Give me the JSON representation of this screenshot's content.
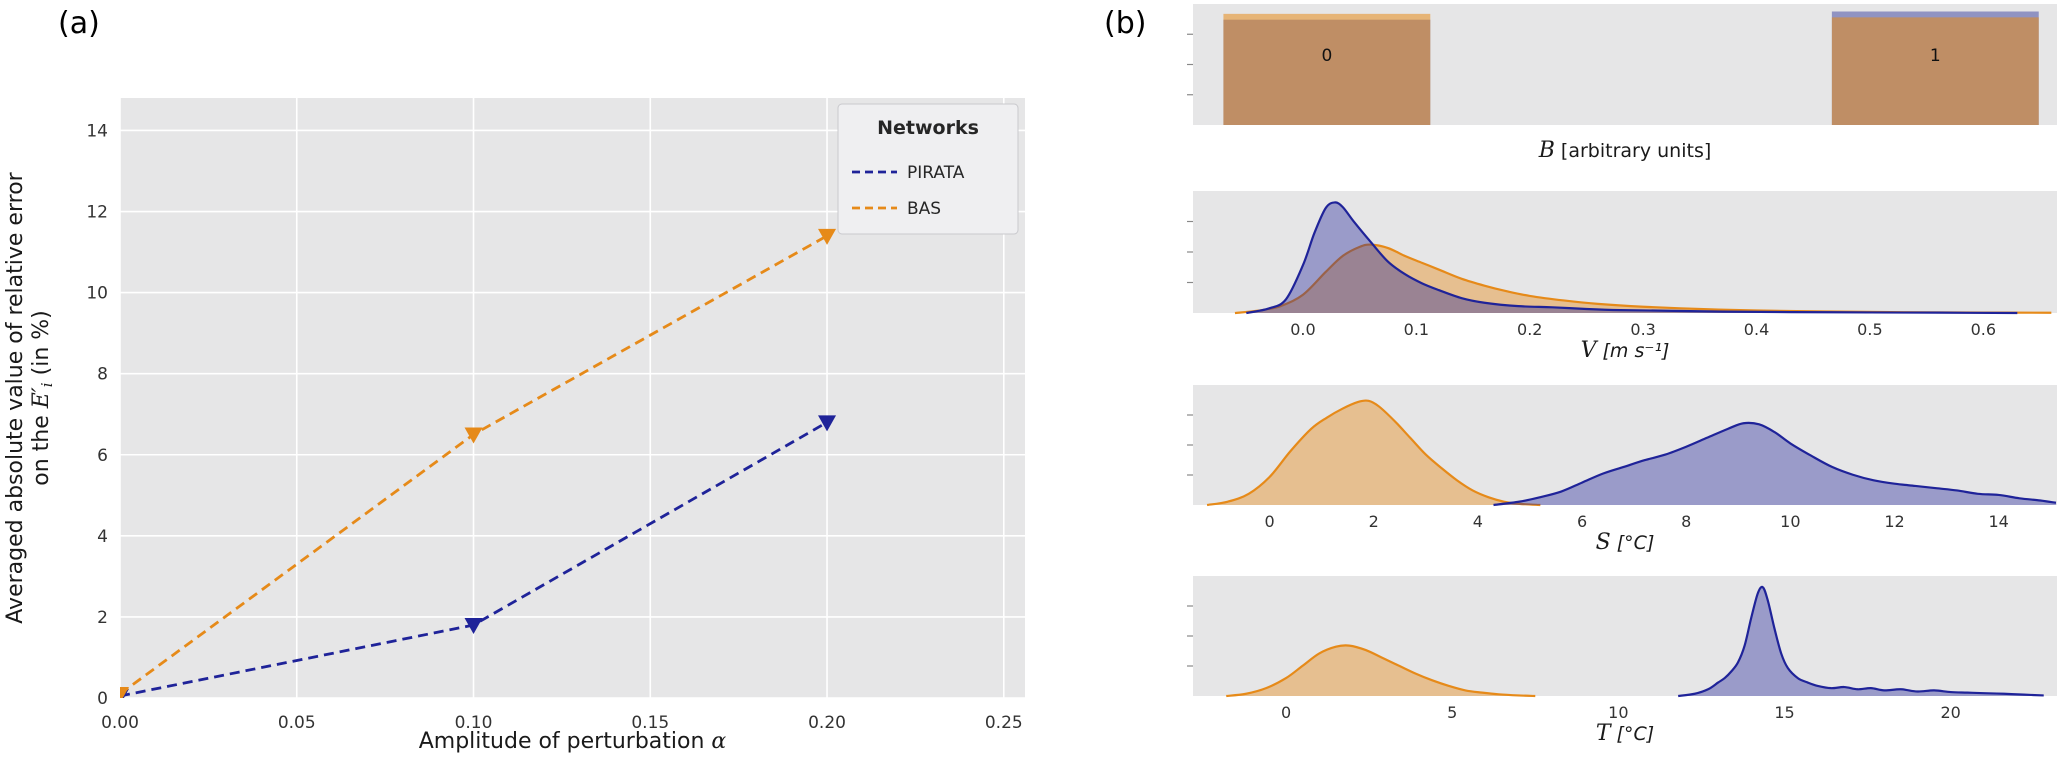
{
  "figure": {
    "panel_a_label": "(a)",
    "panel_b_label": "(b)"
  },
  "colors": {
    "pirata_navy": "#1f2399",
    "bas_orange": "#e68a19",
    "plot_background": "#e6e6e7",
    "grid_white": "#ffffff",
    "tick_text": "#333333",
    "label_text": "#1a1a1a",
    "legend_background": "#efeff1",
    "legend_border": "#c9c9cd"
  },
  "chart_data": [
    {
      "id": "error_vs_amplitude",
      "type": "line",
      "xlabel_text": "Amplitude of perturbation ",
      "xlabel_symbol": "α",
      "ylabel_line1": "Averaged absolute value of relative error",
      "ylabel_line2_pre": "on the ",
      "ylabel_line2_var": "E′",
      "ylabel_line2_sub": "i",
      "ylabel_line2_post": " (in %)",
      "xlim": [
        0.0,
        0.256
      ],
      "ylim": [
        0.0,
        14.8
      ],
      "xticks": [
        0.0,
        0.05,
        0.1,
        0.15,
        0.2,
        0.25
      ],
      "xtick_labels": [
        "0.00",
        "0.05",
        "0.10",
        "0.15",
        "0.20",
        "0.25"
      ],
      "yticks": [
        0,
        2,
        4,
        6,
        8,
        10,
        12,
        14
      ],
      "ytick_labels": [
        "0",
        "2",
        "4",
        "6",
        "8",
        "10",
        "12",
        "14"
      ],
      "grid": true,
      "legend": {
        "title": "Networks",
        "entries": [
          {
            "label": "PIRATA",
            "color": "#1f2399"
          },
          {
            "label": "BAS",
            "color": "#e68a19"
          }
        ]
      },
      "series": [
        {
          "name": "PIRATA",
          "color": "#1f2399",
          "linestyle": "dashed",
          "marker": "triangle-down",
          "x": [
            0.0,
            0.1,
            0.2
          ],
          "y": [
            0.05,
            1.8,
            6.8
          ]
        },
        {
          "name": "BAS",
          "color": "#e68a19",
          "linestyle": "dashed",
          "marker": "triangle-down",
          "x": [
            0.0,
            0.1,
            0.2
          ],
          "y": [
            0.1,
            6.5,
            11.4
          ]
        }
      ]
    },
    {
      "id": "hist_B",
      "type": "bar",
      "symbol": "B",
      "xlabel_rest": " [arbitrary units]",
      "xlim": [
        -0.22,
        1.2
      ],
      "bar_width": 0.34,
      "bars": [
        {
          "x": 0,
          "label": "0",
          "bas_orange_height": 0.95,
          "pirata_blue_height": 0.9
        },
        {
          "x": 1,
          "label": "1",
          "bas_orange_height": 0.92,
          "pirata_blue_height": 0.97
        }
      ]
    },
    {
      "id": "kde_V",
      "type": "area",
      "symbol": "V",
      "xlabel_rest": " [m s⁻¹]",
      "xlim": [
        -0.097,
        0.665
      ],
      "xticks": [
        0,
        0.1,
        0.2,
        0.3,
        0.4,
        0.5,
        0.6
      ],
      "xtick_labels": [
        "0.0",
        "0.1",
        "0.2",
        "0.3",
        "0.4",
        "0.5",
        "0.6"
      ],
      "series": [
        {
          "name": "BAS",
          "color": "#e68a19",
          "fill_opacity": 0.42,
          "points": [
            [
              -0.06,
              0
            ],
            [
              -0.04,
              0.02
            ],
            [
              -0.02,
              0.06
            ],
            [
              0,
              0.16
            ],
            [
              0.02,
              0.36
            ],
            [
              0.035,
              0.5
            ],
            [
              0.05,
              0.58
            ],
            [
              0.06,
              0.6
            ],
            [
              0.075,
              0.57
            ],
            [
              0.09,
              0.5
            ],
            [
              0.105,
              0.44
            ],
            [
              0.12,
              0.38
            ],
            [
              0.14,
              0.3
            ],
            [
              0.16,
              0.24
            ],
            [
              0.18,
              0.19
            ],
            [
              0.2,
              0.15
            ],
            [
              0.23,
              0.11
            ],
            [
              0.26,
              0.08
            ],
            [
              0.3,
              0.055
            ],
            [
              0.35,
              0.035
            ],
            [
              0.4,
              0.022
            ],
            [
              0.46,
              0.013
            ],
            [
              0.53,
              0.007
            ],
            [
              0.6,
              0.004
            ],
            [
              0.66,
              0.002
            ]
          ]
        },
        {
          "name": "PIRATA",
          "color": "#1f2399",
          "fill_opacity": 0.38,
          "points": [
            [
              -0.05,
              0
            ],
            [
              -0.03,
              0.04
            ],
            [
              -0.015,
              0.12
            ],
            [
              0,
              0.42
            ],
            [
              0.01,
              0.7
            ],
            [
              0.02,
              0.92
            ],
            [
              0.028,
              0.97
            ],
            [
              0.035,
              0.93
            ],
            [
              0.045,
              0.8
            ],
            [
              0.06,
              0.62
            ],
            [
              0.075,
              0.45
            ],
            [
              0.09,
              0.34
            ],
            [
              0.105,
              0.26
            ],
            [
              0.12,
              0.2
            ],
            [
              0.14,
              0.13
            ],
            [
              0.16,
              0.09
            ],
            [
              0.19,
              0.06
            ],
            [
              0.22,
              0.05
            ],
            [
              0.25,
              0.035
            ],
            [
              0.28,
              0.025
            ],
            [
              0.32,
              0.02
            ],
            [
              0.37,
              0.012
            ],
            [
              0.43,
              0.008
            ],
            [
              0.5,
              0.005
            ],
            [
              0.56,
              0.003
            ],
            [
              0.63,
              0
            ]
          ]
        }
      ]
    },
    {
      "id": "kde_S",
      "type": "area",
      "symbol": "S",
      "xlabel_rest": " [°C]",
      "xlim": [
        -1.47,
        15.12
      ],
      "xticks": [
        0,
        2,
        4,
        6,
        8,
        10,
        12,
        14
      ],
      "xtick_labels": [
        "0",
        "2",
        "4",
        "6",
        "8",
        "10",
        "12",
        "14"
      ],
      "series": [
        {
          "name": "BAS",
          "color": "#e68a19",
          "fill_opacity": 0.42,
          "points": [
            [
              -1.2,
              0
            ],
            [
              -0.8,
              0.03
            ],
            [
              -0.4,
              0.1
            ],
            [
              0,
              0.25
            ],
            [
              0.4,
              0.48
            ],
            [
              0.8,
              0.68
            ],
            [
              1.1,
              0.78
            ],
            [
              1.4,
              0.86
            ],
            [
              1.7,
              0.92
            ],
            [
              1.9,
              0.93
            ],
            [
              2.1,
              0.88
            ],
            [
              2.4,
              0.75
            ],
            [
              2.7,
              0.6
            ],
            [
              3,
              0.45
            ],
            [
              3.3,
              0.33
            ],
            [
              3.6,
              0.22
            ],
            [
              3.9,
              0.13
            ],
            [
              4.2,
              0.07
            ],
            [
              4.5,
              0.03
            ],
            [
              4.8,
              0.01
            ],
            [
              5.2,
              0
            ]
          ]
        },
        {
          "name": "PIRATA",
          "color": "#1f2399",
          "fill_opacity": 0.38,
          "points": [
            [
              4.3,
              0
            ],
            [
              4.8,
              0.03
            ],
            [
              5.2,
              0.07
            ],
            [
              5.6,
              0.12
            ],
            [
              6,
              0.2
            ],
            [
              6.4,
              0.28
            ],
            [
              6.8,
              0.34
            ],
            [
              7.2,
              0.4
            ],
            [
              7.6,
              0.45
            ],
            [
              8,
              0.52
            ],
            [
              8.4,
              0.6
            ],
            [
              8.8,
              0.68
            ],
            [
              9.1,
              0.73
            ],
            [
              9.4,
              0.72
            ],
            [
              9.7,
              0.65
            ],
            [
              10,
              0.55
            ],
            [
              10.4,
              0.44
            ],
            [
              10.8,
              0.34
            ],
            [
              11.2,
              0.27
            ],
            [
              11.6,
              0.22
            ],
            [
              12,
              0.19
            ],
            [
              12.4,
              0.17
            ],
            [
              12.8,
              0.15
            ],
            [
              13.2,
              0.13
            ],
            [
              13.6,
              0.1
            ],
            [
              14,
              0.09
            ],
            [
              14.4,
              0.06
            ],
            [
              14.8,
              0.04
            ],
            [
              15.1,
              0.02
            ]
          ]
        }
      ]
    },
    {
      "id": "kde_T",
      "type": "area",
      "symbol": "T",
      "xlabel_rest": " [°C]",
      "xlim": [
        -2.8,
        23.2
      ],
      "xticks": [
        0,
        5,
        10,
        15,
        20
      ],
      "xtick_labels": [
        "0",
        "5",
        "10",
        "15",
        "20"
      ],
      "series": [
        {
          "name": "BAS",
          "color": "#e68a19",
          "fill_opacity": 0.42,
          "points": [
            [
              -1.8,
              0
            ],
            [
              -1.2,
              0.02
            ],
            [
              -0.6,
              0.07
            ],
            [
              0,
              0.16
            ],
            [
              0.5,
              0.27
            ],
            [
              1,
              0.38
            ],
            [
              1.5,
              0.44
            ],
            [
              1.9,
              0.45
            ],
            [
              2.4,
              0.41
            ],
            [
              2.9,
              0.34
            ],
            [
              3.4,
              0.27
            ],
            [
              3.9,
              0.2
            ],
            [
              4.4,
              0.14
            ],
            [
              4.9,
              0.09
            ],
            [
              5.4,
              0.05
            ],
            [
              5.9,
              0.03
            ],
            [
              6.4,
              0.015
            ],
            [
              7,
              0.005
            ],
            [
              7.5,
              0
            ]
          ]
        },
        {
          "name": "PIRATA",
          "color": "#1f2399",
          "fill_opacity": 0.38,
          "points": [
            [
              11.8,
              0
            ],
            [
              12.3,
              0.02
            ],
            [
              12.7,
              0.06
            ],
            [
              13,
              0.12
            ],
            [
              13.2,
              0.16
            ],
            [
              13.4,
              0.22
            ],
            [
              13.6,
              0.3
            ],
            [
              13.8,
              0.45
            ],
            [
              14,
              0.7
            ],
            [
              14.2,
              0.92
            ],
            [
              14.35,
              0.97
            ],
            [
              14.5,
              0.85
            ],
            [
              14.7,
              0.6
            ],
            [
              14.9,
              0.38
            ],
            [
              15.1,
              0.25
            ],
            [
              15.4,
              0.16
            ],
            [
              15.7,
              0.12
            ],
            [
              16,
              0.09
            ],
            [
              16.4,
              0.07
            ],
            [
              16.8,
              0.08
            ],
            [
              17.2,
              0.06
            ],
            [
              17.6,
              0.07
            ],
            [
              18,
              0.05
            ],
            [
              18.5,
              0.06
            ],
            [
              19,
              0.04
            ],
            [
              19.5,
              0.05
            ],
            [
              20,
              0.035
            ],
            [
              20.5,
              0.03
            ],
            [
              21,
              0.025
            ],
            [
              21.6,
              0.02
            ],
            [
              22.2,
              0.012
            ],
            [
              22.8,
              0.005
            ]
          ]
        }
      ]
    }
  ]
}
